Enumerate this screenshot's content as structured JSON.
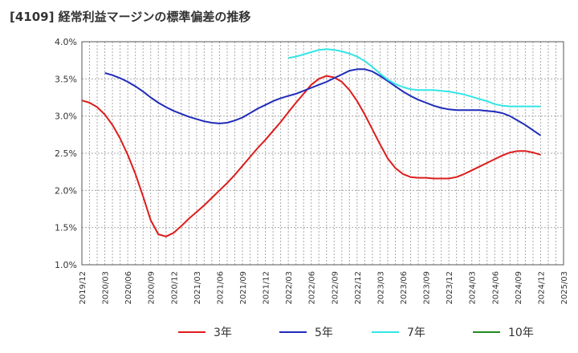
{
  "title": "[4109]  経常利益マージンの標準偏差の推移",
  "chart_data": {
    "type": "line",
    "ylim": [
      1.0,
      4.0
    ],
    "y_ticks": [
      "1.0%",
      "1.5%",
      "2.0%",
      "2.5%",
      "3.0%",
      "3.5%",
      "4.0%"
    ],
    "y_tick_values": [
      1.0,
      1.5,
      2.0,
      2.5,
      3.0,
      3.5,
      4.0
    ],
    "x_ticks": [
      "2019/12",
      "2020/03",
      "2020/06",
      "2020/09",
      "2020/12",
      "2021/03",
      "2021/06",
      "2021/09",
      "2021/12",
      "2022/03",
      "2022/06",
      "2022/09",
      "2022/12",
      "2023/03",
      "2023/06",
      "2023/09",
      "2023/12",
      "2024/03",
      "2024/06",
      "2024/09",
      "2024/12",
      "2025/03"
    ],
    "grid": true,
    "legend_position": "bottom",
    "series": [
      {
        "name": "3年",
        "color": "#dd1c1c",
        "points": [
          [
            "2019/12",
            3.21
          ],
          [
            "2020/01",
            3.18
          ],
          [
            "2020/02",
            3.12
          ],
          [
            "2020/03",
            3.02
          ],
          [
            "2020/04",
            2.88
          ],
          [
            "2020/05",
            2.7
          ],
          [
            "2020/06",
            2.48
          ],
          [
            "2020/07",
            2.22
          ],
          [
            "2020/08",
            1.92
          ],
          [
            "2020/09",
            1.6
          ],
          [
            "2020/10",
            1.41
          ],
          [
            "2020/11",
            1.38
          ],
          [
            "2020/12",
            1.43
          ],
          [
            "2021/01",
            1.52
          ],
          [
            "2021/02",
            1.62
          ],
          [
            "2021/03",
            1.71
          ],
          [
            "2021/04",
            1.8
          ],
          [
            "2021/05",
            1.9
          ],
          [
            "2021/06",
            2.0
          ],
          [
            "2021/07",
            2.1
          ],
          [
            "2021/08",
            2.21
          ],
          [
            "2021/09",
            2.33
          ],
          [
            "2021/10",
            2.45
          ],
          [
            "2021/11",
            2.57
          ],
          [
            "2021/12",
            2.68
          ],
          [
            "2022/01",
            2.8
          ],
          [
            "2022/02",
            2.92
          ],
          [
            "2022/03",
            3.05
          ],
          [
            "2022/04",
            3.18
          ],
          [
            "2022/05",
            3.3
          ],
          [
            "2022/06",
            3.42
          ],
          [
            "2022/07",
            3.5
          ],
          [
            "2022/08",
            3.54
          ],
          [
            "2022/09",
            3.52
          ],
          [
            "2022/10",
            3.46
          ],
          [
            "2022/11",
            3.35
          ],
          [
            "2022/12",
            3.2
          ],
          [
            "2023/01",
            3.02
          ],
          [
            "2023/02",
            2.82
          ],
          [
            "2023/03",
            2.62
          ],
          [
            "2023/04",
            2.43
          ],
          [
            "2023/05",
            2.3
          ],
          [
            "2023/06",
            2.22
          ],
          [
            "2023/07",
            2.18
          ],
          [
            "2023/08",
            2.17
          ],
          [
            "2023/09",
            2.17
          ],
          [
            "2023/10",
            2.16
          ],
          [
            "2023/11",
            2.16
          ],
          [
            "2023/12",
            2.16
          ],
          [
            "2024/01",
            2.18
          ],
          [
            "2024/02",
            2.22
          ],
          [
            "2024/03",
            2.27
          ],
          [
            "2024/04",
            2.32
          ],
          [
            "2024/05",
            2.37
          ],
          [
            "2024/06",
            2.42
          ],
          [
            "2024/07",
            2.47
          ],
          [
            "2024/08",
            2.51
          ],
          [
            "2024/09",
            2.53
          ],
          [
            "2024/10",
            2.53
          ],
          [
            "2024/11",
            2.51
          ],
          [
            "2024/12",
            2.48
          ]
        ]
      },
      {
        "name": "5年",
        "color": "#1f2bb8",
        "points": [
          [
            "2020/03",
            3.58
          ],
          [
            "2020/04",
            3.55
          ],
          [
            "2020/05",
            3.51
          ],
          [
            "2020/06",
            3.46
          ],
          [
            "2020/07",
            3.4
          ],
          [
            "2020/08",
            3.33
          ],
          [
            "2020/09",
            3.25
          ],
          [
            "2020/10",
            3.18
          ],
          [
            "2020/11",
            3.12
          ],
          [
            "2020/12",
            3.07
          ],
          [
            "2021/01",
            3.03
          ],
          [
            "2021/02",
            2.99
          ],
          [
            "2021/03",
            2.96
          ],
          [
            "2021/04",
            2.93
          ],
          [
            "2021/05",
            2.91
          ],
          [
            "2021/06",
            2.9
          ],
          [
            "2021/07",
            2.91
          ],
          [
            "2021/08",
            2.94
          ],
          [
            "2021/09",
            2.98
          ],
          [
            "2021/10",
            3.04
          ],
          [
            "2021/11",
            3.1
          ],
          [
            "2021/12",
            3.15
          ],
          [
            "2022/01",
            3.2
          ],
          [
            "2022/02",
            3.24
          ],
          [
            "2022/03",
            3.27
          ],
          [
            "2022/04",
            3.3
          ],
          [
            "2022/05",
            3.34
          ],
          [
            "2022/06",
            3.38
          ],
          [
            "2022/07",
            3.42
          ],
          [
            "2022/08",
            3.46
          ],
          [
            "2022/09",
            3.51
          ],
          [
            "2022/10",
            3.56
          ],
          [
            "2022/11",
            3.61
          ],
          [
            "2022/12",
            3.63
          ],
          [
            "2023/01",
            3.63
          ],
          [
            "2023/02",
            3.6
          ],
          [
            "2023/03",
            3.54
          ],
          [
            "2023/04",
            3.47
          ],
          [
            "2023/05",
            3.4
          ],
          [
            "2023/06",
            3.33
          ],
          [
            "2023/07",
            3.27
          ],
          [
            "2023/08",
            3.22
          ],
          [
            "2023/09",
            3.18
          ],
          [
            "2023/10",
            3.14
          ],
          [
            "2023/11",
            3.11
          ],
          [
            "2023/12",
            3.09
          ],
          [
            "2024/01",
            3.08
          ],
          [
            "2024/02",
            3.08
          ],
          [
            "2024/03",
            3.08
          ],
          [
            "2024/04",
            3.08
          ],
          [
            "2024/05",
            3.07
          ],
          [
            "2024/06",
            3.06
          ],
          [
            "2024/07",
            3.04
          ],
          [
            "2024/08",
            3.0
          ],
          [
            "2024/09",
            2.94
          ],
          [
            "2024/10",
            2.88
          ],
          [
            "2024/11",
            2.81
          ],
          [
            "2024/12",
            2.74
          ]
        ]
      },
      {
        "name": "7年",
        "color": "#33e5e5",
        "points": [
          [
            "2022/03",
            3.78
          ],
          [
            "2022/04",
            3.8
          ],
          [
            "2022/05",
            3.83
          ],
          [
            "2022/06",
            3.86
          ],
          [
            "2022/07",
            3.89
          ],
          [
            "2022/08",
            3.9
          ],
          [
            "2022/09",
            3.89
          ],
          [
            "2022/10",
            3.87
          ],
          [
            "2022/11",
            3.84
          ],
          [
            "2022/12",
            3.8
          ],
          [
            "2023/01",
            3.74
          ],
          [
            "2023/02",
            3.66
          ],
          [
            "2023/03",
            3.57
          ],
          [
            "2023/04",
            3.49
          ],
          [
            "2023/05",
            3.43
          ],
          [
            "2023/06",
            3.39
          ],
          [
            "2023/07",
            3.36
          ],
          [
            "2023/08",
            3.35
          ],
          [
            "2023/09",
            3.35
          ],
          [
            "2023/10",
            3.35
          ],
          [
            "2023/11",
            3.34
          ],
          [
            "2023/12",
            3.33
          ],
          [
            "2024/01",
            3.31
          ],
          [
            "2024/02",
            3.29
          ],
          [
            "2024/03",
            3.26
          ],
          [
            "2024/04",
            3.23
          ],
          [
            "2024/05",
            3.2
          ],
          [
            "2024/06",
            3.16
          ],
          [
            "2024/07",
            3.14
          ],
          [
            "2024/08",
            3.13
          ],
          [
            "2024/09",
            3.13
          ],
          [
            "2024/10",
            3.13
          ],
          [
            "2024/11",
            3.13
          ],
          [
            "2024/12",
            3.13
          ]
        ]
      },
      {
        "name": "10年",
        "color": "#228b22",
        "points": []
      }
    ]
  }
}
